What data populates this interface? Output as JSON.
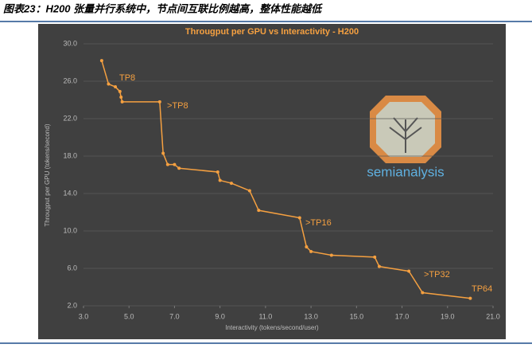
{
  "header": {
    "title": "图表23：H200 张量并行系统中，节点间互联比例越高，整体性能越低"
  },
  "chart_data": {
    "type": "line",
    "title": "Througput per GPU vs Interactivity - H200",
    "xlabel": "Interactivity (tokens/second/user)",
    "ylabel": "Througput per GPU (tokens/second)",
    "watermark": "semianalysis",
    "annotations": [
      "TP8",
      ">TP8",
      ">TP16",
      ">TP32",
      "TP64"
    ],
    "x": [
      3.8,
      4.1,
      4.4,
      4.6,
      4.65,
      4.7,
      6.35,
      6.5,
      6.7,
      7.0,
      7.2,
      8.9,
      9.0,
      9.5,
      10.3,
      10.7,
      12.5,
      12.8,
      13.0,
      13.9,
      15.8,
      16.0,
      17.3,
      17.9,
      20.0
    ],
    "series": [
      {
        "name": "H200",
        "color": "#f5a040",
        "values": [
          28.2,
          25.7,
          25.4,
          24.9,
          24.3,
          23.8,
          23.8,
          18.3,
          17.1,
          17.1,
          16.7,
          16.3,
          15.4,
          15.1,
          14.3,
          12.2,
          11.4,
          8.3,
          7.8,
          7.4,
          7.2,
          6.2,
          5.7,
          3.4,
          2.8
        ]
      }
    ],
    "xlim": [
      3,
      21
    ],
    "xticks": [
      {
        "value": 3,
        "label": "3.0"
      },
      {
        "value": 5,
        "label": "5.0"
      },
      {
        "value": 7,
        "label": "7.0"
      },
      {
        "value": 9,
        "label": "9.0"
      },
      {
        "value": 11,
        "label": "11.0"
      },
      {
        "value": 13,
        "label": "13.0"
      },
      {
        "value": 15,
        "label": "15.0"
      },
      {
        "value": 17,
        "label": "17.0"
      },
      {
        "value": 19,
        "label": "19.0"
      },
      {
        "value": 21,
        "label": "21.0"
      }
    ],
    "ylim": [
      2,
      30
    ],
    "yticks": [
      {
        "value": 2,
        "label": "2.0"
      },
      {
        "value": 6,
        "label": "6.0"
      },
      {
        "value": 10,
        "label": "10.0"
      },
      {
        "value": 14,
        "label": "14.0"
      },
      {
        "value": 18,
        "label": "18.0"
      },
      {
        "value": 22,
        "label": "22.0"
      },
      {
        "value": 26,
        "label": "26.0"
      },
      {
        "value": 30,
        "label": "30.0"
      }
    ],
    "grid": true
  }
}
